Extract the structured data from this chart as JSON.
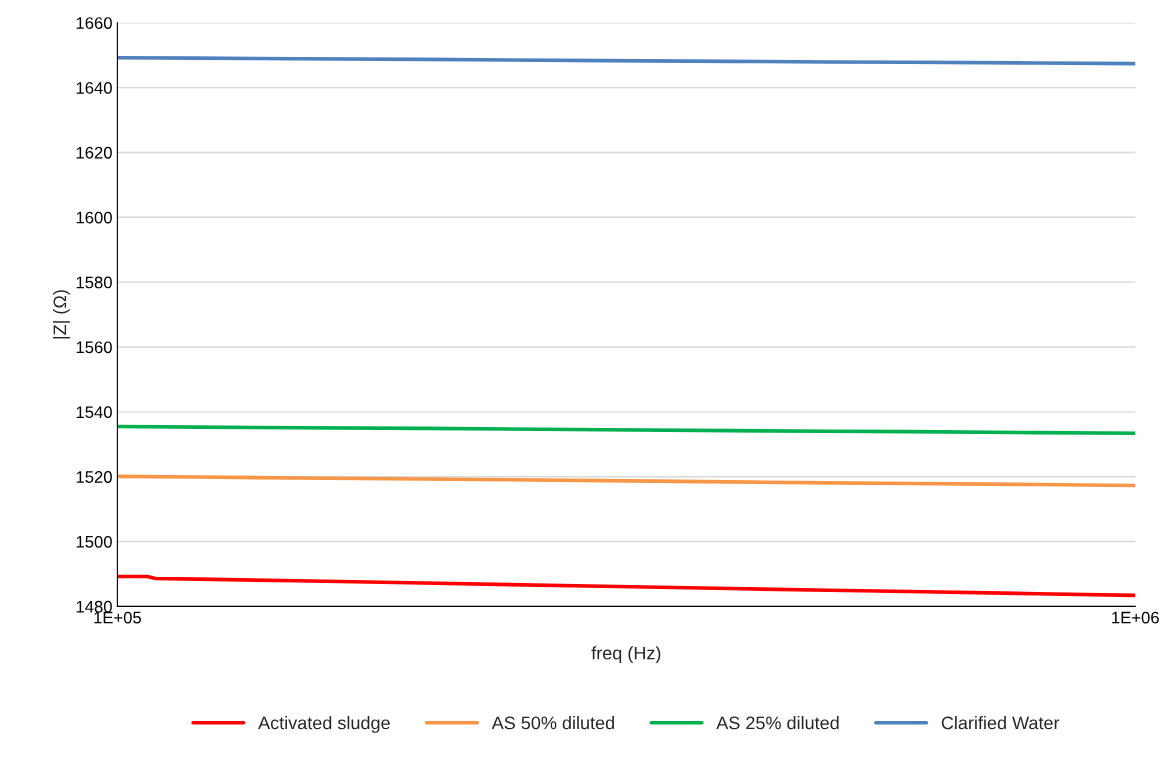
{
  "chart_data": {
    "type": "line",
    "xlabel": "freq (Hz)",
    "ylabel": "|Z| (Ω)",
    "log": "x",
    "xlim": [
      100000,
      1000000
    ],
    "xticks": [
      {
        "value": 100000,
        "label": "1E+05"
      },
      {
        "value": 1000000,
        "label": "1E+06"
      }
    ],
    "ylim": [
      1480,
      1660
    ],
    "yticks": [
      1480,
      1500,
      1520,
      1540,
      1560,
      1580,
      1600,
      1620,
      1640,
      1660
    ],
    "grid": "y",
    "legend": "bottom",
    "marker": "none",
    "line_style": "solid",
    "series": [
      {
        "name": "Activated sludge",
        "color": "#ff0000",
        "x": [
          100000,
          107000,
          109000,
          120000,
          150000,
          200000,
          300000,
          400000,
          500000,
          600000,
          800000,
          1000000
        ],
        "values": [
          1489.2,
          1489.2,
          1488.6,
          1488.4,
          1487.9,
          1487.2,
          1486.2,
          1485.5,
          1485.0,
          1484.6,
          1483.9,
          1483.4
        ]
      },
      {
        "name": "AS 50% diluted",
        "color": "#f79646",
        "x": [
          100000,
          120000,
          150000,
          200000,
          300000,
          400000,
          500000,
          600000,
          800000,
          1000000
        ],
        "values": [
          1520.1,
          1519.9,
          1519.6,
          1519.3,
          1518.8,
          1518.4,
          1518.1,
          1517.9,
          1517.6,
          1517.3
        ]
      },
      {
        "name": "AS 25% diluted",
        "color": "#00b050",
        "x": [
          100000,
          120000,
          150000,
          200000,
          300000,
          400000,
          500000,
          600000,
          800000,
          1000000
        ],
        "values": [
          1535.5,
          1535.3,
          1535.1,
          1534.9,
          1534.5,
          1534.2,
          1534.0,
          1533.9,
          1533.6,
          1533.4
        ]
      },
      {
        "name": "Clarified Water",
        "color": "#4f81bd",
        "x": [
          100000,
          120000,
          150000,
          200000,
          300000,
          400000,
          500000,
          600000,
          800000,
          1000000
        ],
        "values": [
          1649.2,
          1649.1,
          1648.9,
          1648.7,
          1648.3,
          1648.1,
          1647.9,
          1647.8,
          1647.6,
          1647.4
        ]
      }
    ]
  }
}
